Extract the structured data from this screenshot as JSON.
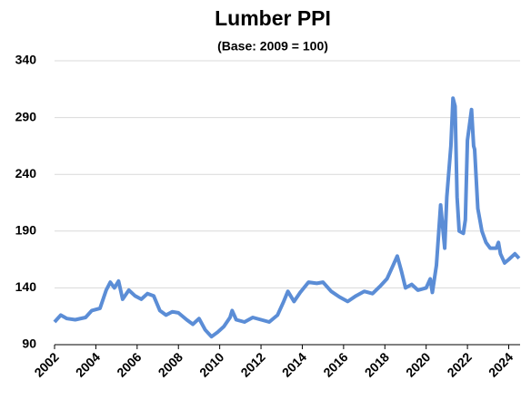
{
  "chart_data": {
    "type": "line",
    "title": "Lumber PPI",
    "subtitle": "(Base: 2009 = 100)",
    "x": [
      2002.0,
      2002.3,
      2002.6,
      2003.0,
      2003.5,
      2003.8,
      2004.2,
      2004.5,
      2004.7,
      2004.9,
      2005.1,
      2005.3,
      2005.6,
      2005.9,
      2006.2,
      2006.5,
      2006.8,
      2007.1,
      2007.4,
      2007.7,
      2008.0,
      2008.4,
      2008.7,
      2009.0,
      2009.3,
      2009.6,
      2009.9,
      2010.2,
      2010.5,
      2010.6,
      2010.8,
      2011.2,
      2011.6,
      2012.0,
      2012.4,
      2012.8,
      2013.1,
      2013.3,
      2013.6,
      2013.9,
      2014.3,
      2014.7,
      2015.0,
      2015.4,
      2015.8,
      2016.2,
      2016.6,
      2017.0,
      2017.4,
      2017.8,
      2018.1,
      2018.4,
      2018.6,
      2018.8,
      2019.0,
      2019.3,
      2019.6,
      2020.0,
      2020.2,
      2020.3,
      2020.5,
      2020.7,
      2020.9,
      2021.0,
      2021.2,
      2021.3,
      2021.4,
      2021.5,
      2021.6,
      2021.8,
      2021.9,
      2022.0,
      2022.2,
      2022.3,
      2022.35,
      2022.5,
      2022.7,
      2022.9,
      2023.1,
      2023.4,
      2023.5,
      2023.6,
      2023.8,
      2024.0,
      2024.3,
      2024.5
    ],
    "values": [
      110,
      116,
      113,
      112,
      114,
      120,
      122,
      138,
      145,
      140,
      146,
      130,
      138,
      133,
      130,
      135,
      133,
      120,
      116,
      119,
      118,
      112,
      108,
      113,
      103,
      97,
      101,
      106,
      114,
      120,
      112,
      110,
      114,
      112,
      110,
      116,
      128,
      137,
      128,
      136,
      145,
      144,
      145,
      137,
      132,
      128,
      133,
      137,
      135,
      142,
      148,
      160,
      168,
      155,
      140,
      143,
      138,
      140,
      148,
      136,
      160,
      213,
      175,
      220,
      265,
      307,
      300,
      220,
      190,
      188,
      200,
      270,
      297,
      265,
      262,
      210,
      190,
      180,
      175,
      175,
      180,
      170,
      162,
      165,
      170,
      166
    ],
    "color": "#5b8dd6",
    "xlim": [
      2002,
      2024.55
    ],
    "xticks": [
      2002,
      2004,
      2006,
      2008,
      2010,
      2012,
      2014,
      2016,
      2018,
      2020,
      2022,
      2024
    ],
    "ylim": [
      90,
      340
    ],
    "yticks": [
      90,
      140,
      190,
      240,
      290,
      340
    ],
    "grid": true
  }
}
